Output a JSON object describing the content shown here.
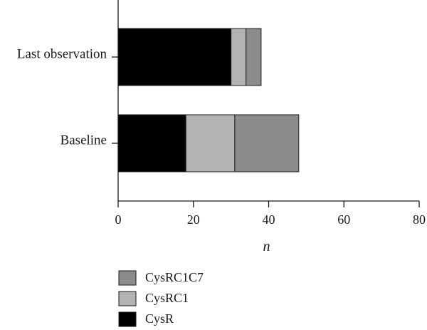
{
  "chart_data": {
    "type": "bar",
    "orientation": "horizontal",
    "stacked": true,
    "categories": [
      "Last observation",
      "Baseline"
    ],
    "series": [
      {
        "name": "CysR",
        "values": [
          30,
          18
        ],
        "color": "#000000"
      },
      {
        "name": "CysRC1",
        "values": [
          4,
          13
        ],
        "color": "#b3b3b3"
      },
      {
        "name": "CysRC1C7",
        "values": [
          4,
          17
        ],
        "color": "#8c8c8c"
      }
    ],
    "xlabel": "n",
    "ylabel": "",
    "title": "",
    "xlim": [
      0,
      80
    ],
    "xticks": [
      "0",
      "20",
      "40",
      "60",
      "80"
    ],
    "grid": false,
    "legend_position": "bottom-center",
    "legend_order": [
      "CysRC1C7",
      "CysRC1",
      "CysR"
    ]
  }
}
